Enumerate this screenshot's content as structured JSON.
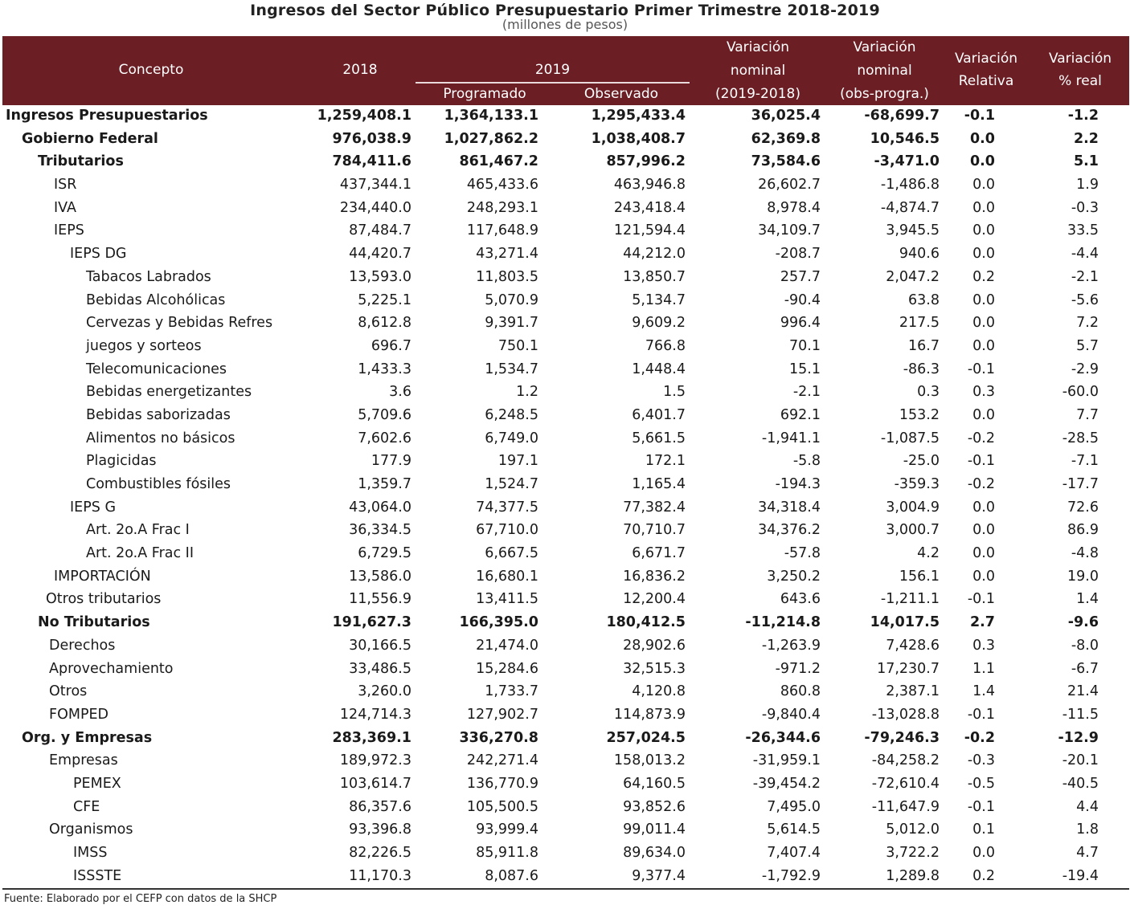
{
  "title": "Ingresos del Sector Público Presupuestario Primer Trimestre 2018-2019",
  "subtitle": "(millones de pesos)",
  "headers": {
    "concepto": "Concepto",
    "y2018": "2018",
    "y2019": "2019",
    "programado": "Programado",
    "observado": "Observado",
    "var_nom_1": "Variación",
    "var_nom_2": "nominal",
    "var_nom_3": "(2019-2018)",
    "var_obs_1": "Variación",
    "var_obs_2": "nominal",
    "var_obs_3": "(obs-progra.)",
    "var_rel_1": "Variación",
    "var_rel_2": "Relativa",
    "var_real_1": "Variación",
    "var_real_2": "% real"
  },
  "rows": [
    {
      "concepto": "Ingresos Presupuestarios",
      "y2018": "1,259,408.1",
      "prog": "1,364,133.1",
      "obs": "1,295,433.4",
      "vn": "36,025.4",
      "vop": "-68,699.7",
      "vrel": "-0.1",
      "vreal": "-1.2",
      "level": 0,
      "bold": true
    },
    {
      "concepto": "Gobierno Federal",
      "y2018": "976,038.9",
      "prog": "1,027,862.2",
      "obs": "1,038,408.7",
      "vn": "62,369.8",
      "vop": "10,546.5",
      "vrel": "0.0",
      "vreal": "2.2",
      "level": 1,
      "bold": true
    },
    {
      "concepto": "Tributarios",
      "y2018": "784,411.6",
      "prog": "861,467.2",
      "obs": "857,996.2",
      "vn": "73,584.6",
      "vop": "-3,471.0",
      "vrel": "0.0",
      "vreal": "5.1",
      "level": 2,
      "bold": true
    },
    {
      "concepto": "ISR",
      "y2018": "437,344.1",
      "prog": "465,433.6",
      "obs": "463,946.8",
      "vn": "26,602.7",
      "vop": "-1,486.8",
      "vrel": "0.0",
      "vreal": "1.9",
      "level": 3,
      "bold": false
    },
    {
      "concepto": "IVA",
      "y2018": "234,440.0",
      "prog": "248,293.1",
      "obs": "243,418.4",
      "vn": "8,978.4",
      "vop": "-4,874.7",
      "vrel": "0.0",
      "vreal": "-0.3",
      "level": 3,
      "bold": false
    },
    {
      "concepto": "IEPS",
      "y2018": "87,484.7",
      "prog": "117,648.9",
      "obs": "121,594.4",
      "vn": "34,109.7",
      "vop": "3,945.5",
      "vrel": "0.0",
      "vreal": "33.5",
      "level": 3,
      "bold": false
    },
    {
      "concepto": "IEPS DG",
      "y2018": "44,420.7",
      "prog": "43,271.4",
      "obs": "44,212.0",
      "vn": "-208.7",
      "vop": "940.6",
      "vrel": "0.0",
      "vreal": "-4.4",
      "level": 4,
      "bold": false
    },
    {
      "concepto": "Tabacos Labrados",
      "y2018": "13,593.0",
      "prog": "11,803.5",
      "obs": "13,850.7",
      "vn": "257.7",
      "vop": "2,047.2",
      "vrel": "0.2",
      "vreal": "-2.1",
      "level": 5,
      "bold": false
    },
    {
      "concepto": "Bebidas Alcohólicas",
      "y2018": "5,225.1",
      "prog": "5,070.9",
      "obs": "5,134.7",
      "vn": "-90.4",
      "vop": "63.8",
      "vrel": "0.0",
      "vreal": "-5.6",
      "level": 5,
      "bold": false
    },
    {
      "concepto": "Cervezas y Bebidas Refres",
      "y2018": "8,612.8",
      "prog": "9,391.7",
      "obs": "9,609.2",
      "vn": "996.4",
      "vop": "217.5",
      "vrel": "0.0",
      "vreal": "7.2",
      "level": 5,
      "bold": false
    },
    {
      "concepto": "juegos y sorteos",
      "y2018": "696.7",
      "prog": "750.1",
      "obs": "766.8",
      "vn": "70.1",
      "vop": "16.7",
      "vrel": "0.0",
      "vreal": "5.7",
      "level": 5,
      "bold": false
    },
    {
      "concepto": "Telecomunicaciones",
      "y2018": "1,433.3",
      "prog": "1,534.7",
      "obs": "1,448.4",
      "vn": "15.1",
      "vop": "-86.3",
      "vrel": "-0.1",
      "vreal": "-2.9",
      "level": 5,
      "bold": false
    },
    {
      "concepto": "Bebidas energetizantes",
      "y2018": "3.6",
      "prog": "1.2",
      "obs": "1.5",
      "vn": "-2.1",
      "vop": "0.3",
      "vrel": "0.3",
      "vreal": "-60.0",
      "level": 5,
      "bold": false
    },
    {
      "concepto": "Bebidas saborizadas",
      "y2018": "5,709.6",
      "prog": "6,248.5",
      "obs": "6,401.7",
      "vn": "692.1",
      "vop": "153.2",
      "vrel": "0.0",
      "vreal": "7.7",
      "level": 5,
      "bold": false
    },
    {
      "concepto": "Alimentos no básicos",
      "y2018": "7,602.6",
      "prog": "6,749.0",
      "obs": "5,661.5",
      "vn": "-1,941.1",
      "vop": "-1,087.5",
      "vrel": "-0.2",
      "vreal": "-28.5",
      "level": 5,
      "bold": false
    },
    {
      "concepto": "Plagicidas",
      "y2018": "177.9",
      "prog": "197.1",
      "obs": "172.1",
      "vn": "-5.8",
      "vop": "-25.0",
      "vrel": "-0.1",
      "vreal": "-7.1",
      "level": 5,
      "bold": false
    },
    {
      "concepto": "Combustibles fósiles",
      "y2018": "1,359.7",
      "prog": "1,524.7",
      "obs": "1,165.4",
      "vn": "-194.3",
      "vop": "-359.3",
      "vrel": "-0.2",
      "vreal": "-17.7",
      "level": 5,
      "bold": false
    },
    {
      "concepto": "IEPS G",
      "y2018": "43,064.0",
      "prog": "74,377.5",
      "obs": "77,382.4",
      "vn": "34,318.4",
      "vop": "3,004.9",
      "vrel": "0.0",
      "vreal": "72.6",
      "level": 4,
      "bold": false
    },
    {
      "concepto": "Art. 2o.A Frac I",
      "y2018": "36,334.5",
      "prog": "67,710.0",
      "obs": "70,710.7",
      "vn": "34,376.2",
      "vop": "3,000.7",
      "vrel": "0.0",
      "vreal": "86.9",
      "level": 5,
      "bold": false
    },
    {
      "concepto": "Art. 2o.A Frac II",
      "y2018": "6,729.5",
      "prog": "6,667.5",
      "obs": "6,671.7",
      "vn": "-57.8",
      "vop": "4.2",
      "vrel": "0.0",
      "vreal": "-4.8",
      "level": 5,
      "bold": false
    },
    {
      "concepto": "IMPORTACIÓN",
      "y2018": "13,586.0",
      "prog": "16,680.1",
      "obs": "16,836.2",
      "vn": "3,250.2",
      "vop": "156.1",
      "vrel": "0.0",
      "vreal": "19.0",
      "level": 3,
      "bold": false
    },
    {
      "concepto": "Otros  tributarios",
      "y2018": "11,556.9",
      "prog": "13,411.5",
      "obs": "12,200.4",
      "vn": "643.6",
      "vop": "-1,211.1",
      "vrel": "-0.1",
      "vreal": "1.4",
      "level": 2.5,
      "bold": false
    },
    {
      "concepto": "No Tributarios",
      "y2018": "191,627.3",
      "prog": "166,395.0",
      "obs": "180,412.5",
      "vn": "-11,214.8",
      "vop": "14,017.5",
      "vrel": "2.7",
      "vreal": "-9.6",
      "level": 2,
      "bold": true
    },
    {
      "concepto": "Derechos",
      "y2018": "30,166.5",
      "prog": "21,474.0",
      "obs": "28,902.6",
      "vn": "-1,263.9",
      "vop": "7,428.6",
      "vrel": "0.3",
      "vreal": "-8.0",
      "level": 2.7,
      "bold": false
    },
    {
      "concepto": "Aprovechamiento",
      "y2018": "33,486.5",
      "prog": "15,284.6",
      "obs": "32,515.3",
      "vn": "-971.2",
      "vop": "17,230.7",
      "vrel": "1.1",
      "vreal": "-6.7",
      "level": 2.7,
      "bold": false
    },
    {
      "concepto": "Otros",
      "y2018": "3,260.0",
      "prog": "1,733.7",
      "obs": "4,120.8",
      "vn": "860.8",
      "vop": "2,387.1",
      "vrel": "1.4",
      "vreal": "21.4",
      "level": 2.7,
      "bold": false
    },
    {
      "concepto": "FOMPED",
      "y2018": "124,714.3",
      "prog": "127,902.7",
      "obs": "114,873.9",
      "vn": "-9,840.4",
      "vop": "-13,028.8",
      "vrel": "-0.1",
      "vreal": "-11.5",
      "level": 2.7,
      "bold": false
    },
    {
      "concepto": "Org. y Empresas",
      "y2018": "283,369.1",
      "prog": "336,270.8",
      "obs": "257,024.5",
      "vn": "-26,344.6",
      "vop": "-79,246.3",
      "vrel": "-0.2",
      "vreal": "-12.9",
      "level": 1,
      "bold": true
    },
    {
      "concepto": "Empresas",
      "y2018": "189,972.3",
      "prog": "242,271.4",
      "obs": "158,013.2",
      "vn": "-31,959.1",
      "vop": "-84,258.2",
      "vrel": "-0.3",
      "vreal": "-20.1",
      "level": 2.7,
      "bold": false
    },
    {
      "concepto": "PEMEX",
      "y2018": "103,614.7",
      "prog": "136,770.9",
      "obs": "64,160.5",
      "vn": "-39,454.2",
      "vop": "-72,610.4",
      "vrel": "-0.5",
      "vreal": "-40.5",
      "level": 4.2,
      "bold": false
    },
    {
      "concepto": "CFE",
      "y2018": "86,357.6",
      "prog": "105,500.5",
      "obs": "93,852.6",
      "vn": "7,495.0",
      "vop": "-11,647.9",
      "vrel": "-0.1",
      "vreal": "4.4",
      "level": 4.2,
      "bold": false
    },
    {
      "concepto": "Organismos",
      "y2018": "93,396.8",
      "prog": "93,999.4",
      "obs": "99,011.4",
      "vn": "5,614.5",
      "vop": "5,012.0",
      "vrel": "0.1",
      "vreal": "1.8",
      "level": 2.7,
      "bold": false
    },
    {
      "concepto": "IMSS",
      "y2018": "82,226.5",
      "prog": "85,911.8",
      "obs": "89,634.0",
      "vn": "7,407.4",
      "vop": "3,722.2",
      "vrel": "0.0",
      "vreal": "4.7",
      "level": 4.2,
      "bold": false
    },
    {
      "concepto": "ISSSTE",
      "y2018": "11,170.3",
      "prog": "8,087.6",
      "obs": "9,377.4",
      "vn": "-1,792.9",
      "vop": "1,289.8",
      "vrel": "0.2",
      "vreal": "-19.4",
      "level": 4.2,
      "bold": false
    }
  ],
  "source": "Fuente: Elaborado por el CEFP con datos de la SHCP",
  "colors": {
    "header_bg": "#6b1e24",
    "header_text": "#ffffff"
  }
}
